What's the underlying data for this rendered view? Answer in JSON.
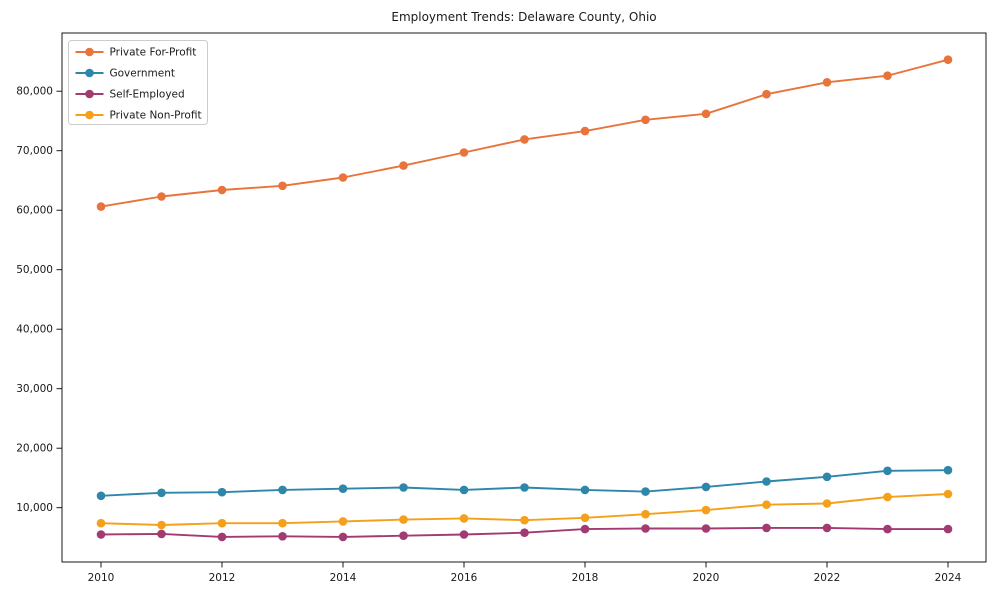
{
  "title": "Employment Trends: Delaware County, Ohio",
  "colors": {
    "private_for_profit": "#E8743B",
    "government": "#2E86AB",
    "self_employed": "#A23B72",
    "private_non_profit": "#F5A01A",
    "axis": "#000000",
    "legend_border": "#cccccc",
    "background": "#ffffff"
  },
  "chart_data": {
    "type": "line",
    "title": "Employment Trends: Delaware County, Ohio",
    "xlabel": "",
    "ylabel": "",
    "grid": false,
    "legend_position": "upper left",
    "x": [
      2010,
      2011,
      2012,
      2013,
      2014,
      2015,
      2016,
      2017,
      2018,
      2019,
      2020,
      2021,
      2022,
      2023,
      2024
    ],
    "x_tick_labels": [
      "2010",
      "2012",
      "2014",
      "2016",
      "2018",
      "2020",
      "2022",
      "2024"
    ],
    "x_tick_years": [
      2010,
      2012,
      2014,
      2016,
      2018,
      2020,
      2022,
      2024
    ],
    "y_tick_values": [
      10000,
      20000,
      30000,
      40000,
      50000,
      60000,
      70000,
      80000
    ],
    "y_tick_labels": [
      "10,000",
      "20,000",
      "30,000",
      "40,000",
      "50,000",
      "60,000",
      "70,000",
      "80,000"
    ],
    "ylim": [
      0,
      90000
    ],
    "xlim": [
      2009.35,
      2024.65
    ],
    "series": [
      {
        "name": "Private For-Profit",
        "color": "#E8743B",
        "values": [
          60600,
          62300,
          63400,
          64100,
          65500,
          67500,
          69700,
          71900,
          73300,
          75200,
          76200,
          79500,
          81500,
          82600,
          85300
        ]
      },
      {
        "name": "Government",
        "color": "#2E86AB",
        "values": [
          12000,
          12500,
          12600,
          13000,
          13200,
          13400,
          13000,
          13400,
          13000,
          12700,
          13500,
          14400,
          15200,
          16200,
          16300
        ]
      },
      {
        "name": "Self-Employed",
        "color": "#A23B72",
        "values": [
          5500,
          5600,
          5100,
          5200,
          5100,
          5300,
          5500,
          5800,
          6400,
          6500,
          6500,
          6600,
          6600,
          6400,
          6400
        ]
      },
      {
        "name": "Private Non-Profit",
        "color": "#F5A01A",
        "values": [
          7400,
          7100,
          7400,
          7400,
          7700,
          8000,
          8200,
          7900,
          8300,
          8900,
          9600,
          10500,
          10700,
          11800,
          12300
        ]
      }
    ]
  }
}
